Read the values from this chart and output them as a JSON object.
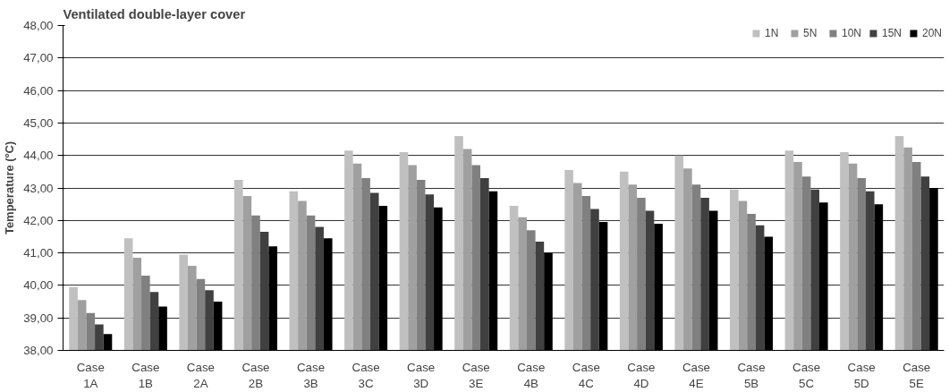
{
  "chart_data": {
    "type": "bar",
    "title": "Ventilated double-layer cover",
    "ylabel": "Temperature (ºC)",
    "categories": [
      "Case 1A",
      "Case 1B",
      "Case 2A",
      "Case 2B",
      "Case 3B",
      "Case 3C",
      "Case 3D",
      "Case 3E",
      "Case 4B",
      "Case 4C",
      "Case 4D",
      "Case 4E",
      "Case 5B",
      "Case 5C",
      "Case 5D",
      "Case 5E"
    ],
    "series": [
      {
        "name": "1N",
        "color": "#c0c0c0",
        "values": [
          39.95,
          41.45,
          40.95,
          43.25,
          42.9,
          44.15,
          44.1,
          44.6,
          42.45,
          43.55,
          43.5,
          44.0,
          42.95,
          44.15,
          44.1,
          44.6
        ]
      },
      {
        "name": "5N",
        "color": "#a0a0a0",
        "values": [
          39.55,
          40.85,
          40.6,
          42.75,
          42.6,
          43.75,
          43.7,
          44.2,
          42.1,
          43.15,
          43.1,
          43.6,
          42.6,
          43.8,
          43.75,
          44.25
        ]
      },
      {
        "name": "10N",
        "color": "#808080",
        "values": [
          39.15,
          40.3,
          40.2,
          42.15,
          42.15,
          43.3,
          43.25,
          43.7,
          41.7,
          42.75,
          42.7,
          43.1,
          42.2,
          43.35,
          43.3,
          43.8
        ]
      },
      {
        "name": "15N",
        "color": "#404040",
        "values": [
          38.8,
          39.8,
          39.85,
          41.65,
          41.8,
          42.85,
          42.8,
          43.3,
          41.35,
          42.35,
          42.3,
          42.7,
          41.85,
          42.95,
          42.9,
          43.35
        ]
      },
      {
        "name": "20N",
        "color": "#000000",
        "values": [
          38.5,
          39.35,
          39.5,
          41.2,
          41.45,
          42.45,
          42.4,
          42.9,
          41.0,
          41.95,
          41.9,
          42.3,
          41.5,
          42.55,
          42.5,
          43.0
        ]
      }
    ],
    "ylim": [
      38,
      48
    ],
    "yticks": [
      {
        "value": 38,
        "label": "38,00"
      },
      {
        "value": 39,
        "label": "39,00"
      },
      {
        "value": 40,
        "label": "40,00"
      },
      {
        "value": 41,
        "label": "41,00"
      },
      {
        "value": 42,
        "label": "42,00"
      },
      {
        "value": 43,
        "label": "43,00"
      },
      {
        "value": 44,
        "label": "44,00"
      },
      {
        "value": 45,
        "label": "45,00"
      },
      {
        "value": 46,
        "label": "46,00"
      },
      {
        "value": 47,
        "label": "47,00"
      },
      {
        "value": 48,
        "label": "48,00"
      }
    ],
    "grid": "y",
    "legend": "top right"
  }
}
